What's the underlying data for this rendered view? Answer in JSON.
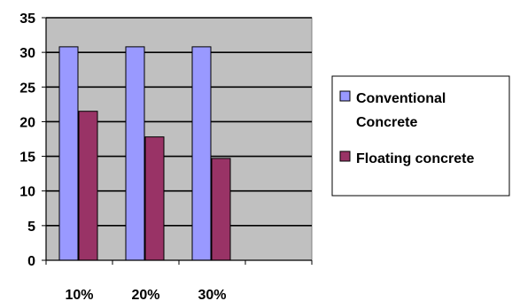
{
  "chart_data": {
    "type": "bar",
    "categories": [
      "10%",
      "20%",
      "30%"
    ],
    "series": [
      {
        "name": "Conventional Concrete",
        "values": [
          30.8,
          30.8,
          30.8
        ]
      },
      {
        "name": "Floating concrete",
        "values": [
          21.5,
          17.8,
          14.7
        ]
      }
    ],
    "y_ticks": [
      "0",
      "5",
      "10",
      "15",
      "20",
      "25",
      "30",
      "35"
    ],
    "ylim": [
      0,
      35
    ],
    "grid": true,
    "legend_position": "right",
    "legend_lines": [
      [
        "Conventional",
        "Concrete"
      ],
      [
        "Floating concrete"
      ]
    ],
    "colors": {
      "plot_background": "#c0c0c0",
      "conventional": "#9999ff",
      "floating": "#993366",
      "bar_stroke": "#000000"
    }
  }
}
